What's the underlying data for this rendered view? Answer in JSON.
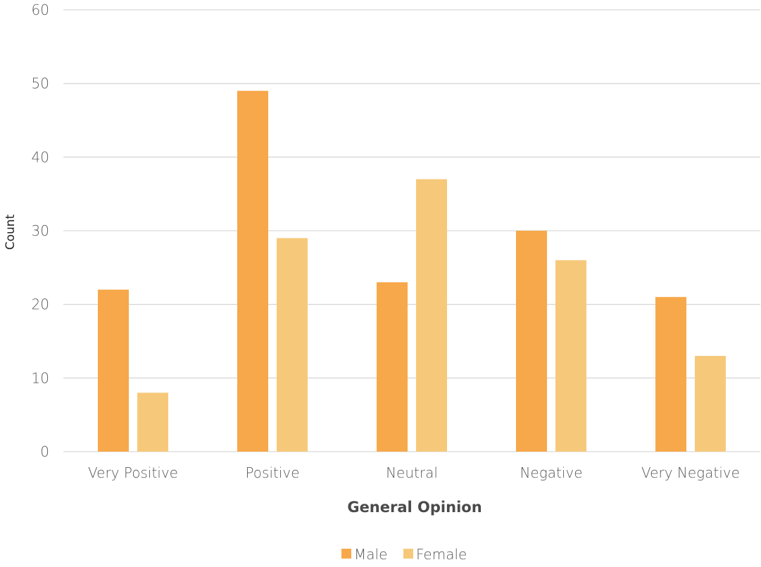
{
  "chart_data": {
    "type": "bar",
    "categories": [
      "Very Positive",
      "Positive",
      "Neutral",
      "Negative",
      "Very Negative"
    ],
    "series": [
      {
        "name": "Male",
        "values": [
          22,
          49,
          23,
          30,
          21
        ],
        "color": "#f7a84a"
      },
      {
        "name": "Female",
        "values": [
          8,
          29,
          37,
          26,
          13
        ],
        "color": "#f6c97a"
      }
    ],
    "xlabel": "General Opinion",
    "ylabel": "Count",
    "ylim": [
      0,
      60
    ],
    "yticks": [
      0,
      10,
      20,
      30,
      40,
      50,
      60
    ],
    "grid": true,
    "legend_position": "bottom"
  }
}
